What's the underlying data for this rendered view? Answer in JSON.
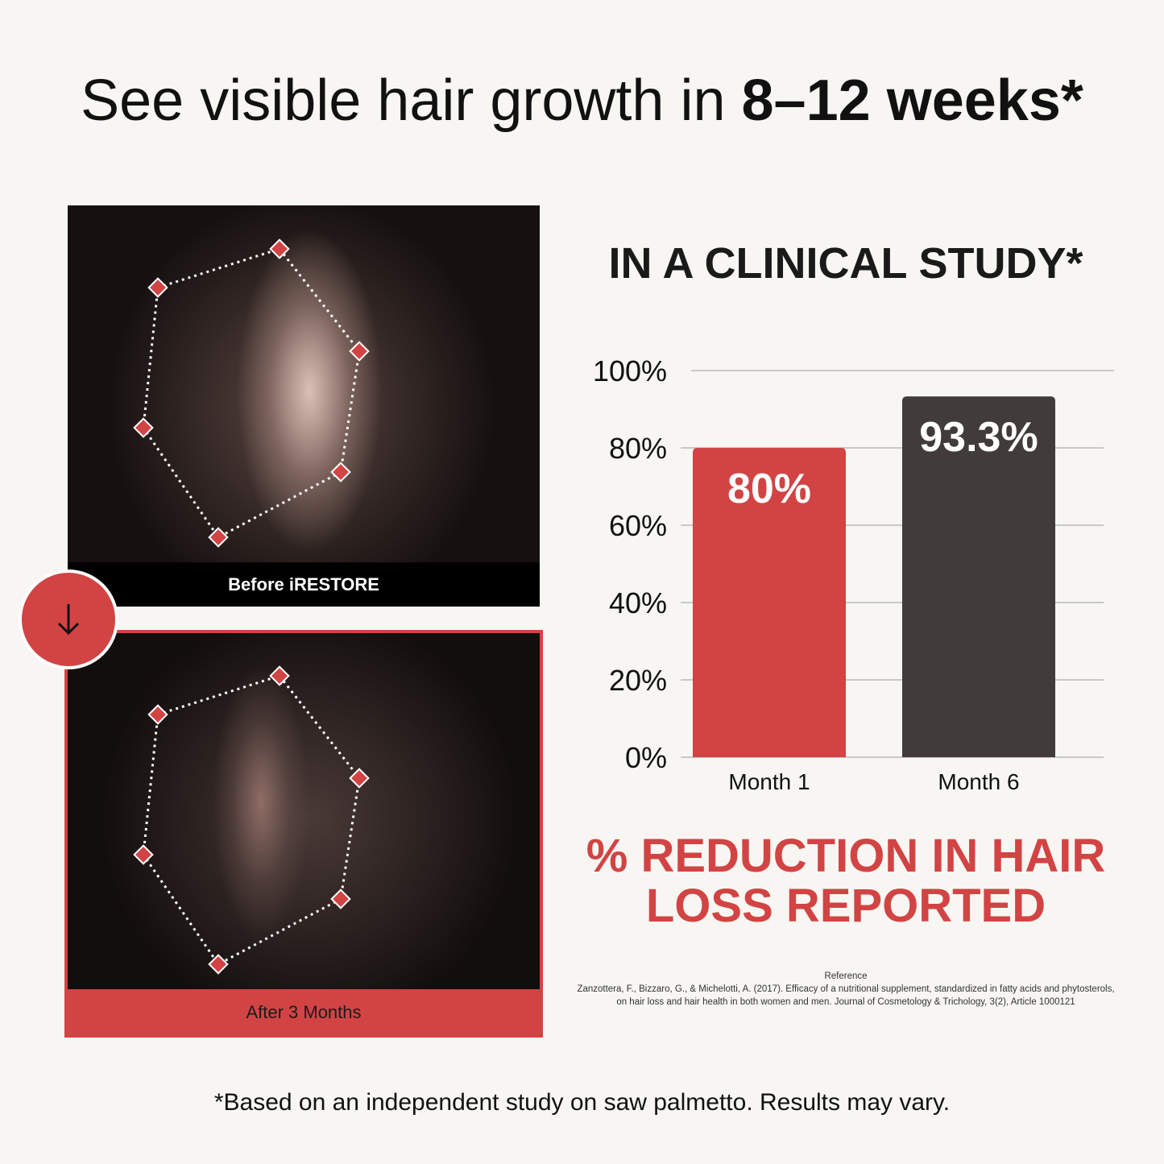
{
  "headline": {
    "regular": "See visible hair growth in ",
    "bold": "8–12 weeks*"
  },
  "before_label": "Before iRESTORE",
  "after_label": "After 3 Months",
  "arrow_icon": "arrow-down-icon",
  "colors": {
    "accent_red": "#d24444",
    "dark_bar": "#413b3a",
    "background": "#f7f6f2"
  },
  "study_title": "IN A CLINICAL STUDY*",
  "chart_data": {
    "type": "bar",
    "categories": [
      "Month 1",
      "Month 6"
    ],
    "values": [
      80,
      93.3
    ],
    "data_labels": [
      "80%",
      "93.3%"
    ],
    "bar_colors": [
      "#d24444",
      "#413b3a"
    ],
    "ylim": [
      0,
      100
    ],
    "yticks": [
      "0%",
      "20%",
      "40%",
      "60%",
      "80%",
      "100%"
    ],
    "grid": true,
    "title": "IN A CLINICAL STUDY*",
    "xlabel": "",
    "ylabel": ""
  },
  "chart_caption": "% REDUCTION IN HAIR LOSS REPORTED",
  "reference": {
    "heading": "Reference",
    "text": "Zanzottera, F., Bizzaro, G., & Michelotti, A. (2017). Efficacy of a nutritional supplement, standardized in fatty acids and phytosterols, on hair loss and hair health in both women and men. Journal of Cosmetology & Trichology, 3(2), Article 1000121"
  },
  "footnote": "*Based on an independent study on saw palmetto. Results may vary."
}
